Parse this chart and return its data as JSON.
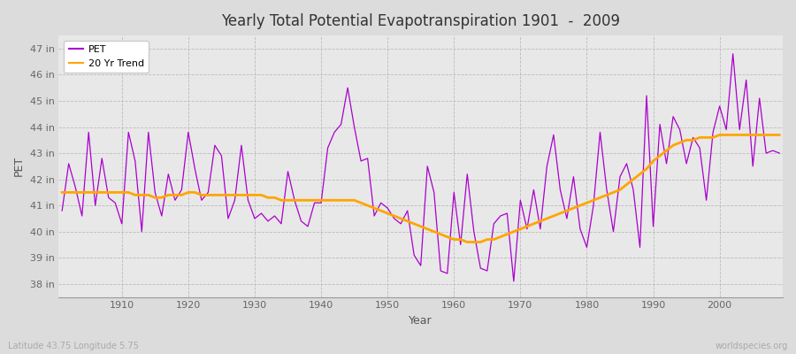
{
  "title": "Yearly Total Potential Evapotranspiration 1901  -  2009",
  "xlabel": "Year",
  "ylabel": "PET",
  "subtitle_lat": "Latitude 43.75 Longitude 5.75",
  "watermark": "worldspecies.org",
  "pet_color": "#AA00CC",
  "trend_color": "#FFA500",
  "bg_color": "#DCDCDC",
  "plot_bg_color": "#E8E8E8",
  "ylim": [
    37.5,
    47.5
  ],
  "yticks": [
    38,
    39,
    40,
    41,
    42,
    43,
    44,
    45,
    46,
    47
  ],
  "xticks": [
    1910,
    1920,
    1930,
    1940,
    1950,
    1960,
    1970,
    1980,
    1990,
    2000
  ],
  "years": [
    1901,
    1902,
    1903,
    1904,
    1905,
    1906,
    1907,
    1908,
    1909,
    1910,
    1911,
    1912,
    1913,
    1914,
    1915,
    1916,
    1917,
    1918,
    1919,
    1920,
    1921,
    1922,
    1923,
    1924,
    1925,
    1926,
    1927,
    1928,
    1929,
    1930,
    1931,
    1932,
    1933,
    1934,
    1935,
    1936,
    1937,
    1938,
    1939,
    1940,
    1941,
    1942,
    1943,
    1944,
    1945,
    1946,
    1947,
    1948,
    1949,
    1950,
    1951,
    1952,
    1953,
    1954,
    1955,
    1956,
    1957,
    1958,
    1959,
    1960,
    1961,
    1962,
    1963,
    1964,
    1965,
    1966,
    1967,
    1968,
    1969,
    1970,
    1971,
    1972,
    1973,
    1974,
    1975,
    1976,
    1977,
    1978,
    1979,
    1980,
    1981,
    1982,
    1983,
    1984,
    1985,
    1986,
    1987,
    1988,
    1989,
    1990,
    1991,
    1992,
    1993,
    1994,
    1995,
    1996,
    1997,
    1998,
    1999,
    2000,
    2001,
    2002,
    2003,
    2004,
    2005,
    2006,
    2007,
    2008,
    2009
  ],
  "pet": [
    40.8,
    42.6,
    41.7,
    40.6,
    43.8,
    41.0,
    42.8,
    41.3,
    41.1,
    40.3,
    43.8,
    42.7,
    40.0,
    43.8,
    41.5,
    40.6,
    42.2,
    41.2,
    41.6,
    43.8,
    42.4,
    41.2,
    41.5,
    43.3,
    42.9,
    40.5,
    41.2,
    43.3,
    41.2,
    40.5,
    40.7,
    40.4,
    40.6,
    40.3,
    42.3,
    41.2,
    40.4,
    40.2,
    41.1,
    41.1,
    43.2,
    43.8,
    44.1,
    45.5,
    44.0,
    42.7,
    42.8,
    40.6,
    41.1,
    40.9,
    40.5,
    40.3,
    40.8,
    39.1,
    38.7,
    42.5,
    41.5,
    38.5,
    38.4,
    41.5,
    39.5,
    42.2,
    40.0,
    38.6,
    38.5,
    40.3,
    40.6,
    40.7,
    38.1,
    41.2,
    40.1,
    41.6,
    40.1,
    42.5,
    43.7,
    41.6,
    40.5,
    42.1,
    40.1,
    39.4,
    41.0,
    43.8,
    41.6,
    40.0,
    42.1,
    42.6,
    41.6,
    39.4,
    45.2,
    40.2,
    44.1,
    42.6,
    44.4,
    43.9,
    42.6,
    43.6,
    43.2,
    41.2,
    43.8,
    44.8,
    43.9,
    46.8,
    43.9,
    45.8,
    42.5,
    45.1,
    43.0,
    43.1,
    43.0
  ],
  "trend": [
    41.5,
    41.5,
    41.5,
    41.5,
    41.5,
    41.5,
    41.5,
    41.5,
    41.5,
    41.5,
    41.5,
    41.4,
    41.4,
    41.4,
    41.3,
    41.3,
    41.4,
    41.4,
    41.4,
    41.5,
    41.5,
    41.4,
    41.4,
    41.4,
    41.4,
    41.4,
    41.4,
    41.4,
    41.4,
    41.4,
    41.4,
    41.3,
    41.3,
    41.2,
    41.2,
    41.2,
    41.2,
    41.2,
    41.2,
    41.2,
    41.2,
    41.2,
    41.2,
    41.2,
    41.2,
    41.1,
    41.0,
    40.9,
    40.8,
    40.7,
    40.6,
    40.5,
    40.4,
    40.3,
    40.2,
    40.1,
    40.0,
    39.9,
    39.8,
    39.7,
    39.7,
    39.6,
    39.6,
    39.6,
    39.7,
    39.7,
    39.8,
    39.9,
    40.0,
    40.1,
    40.2,
    40.3,
    40.4,
    40.5,
    40.6,
    40.7,
    40.8,
    40.9,
    41.0,
    41.1,
    41.2,
    41.3,
    41.4,
    41.5,
    41.6,
    41.8,
    42.0,
    42.2,
    42.4,
    42.7,
    42.9,
    43.1,
    43.3,
    43.4,
    43.5,
    43.5,
    43.6,
    43.6,
    43.6,
    43.7,
    43.7,
    43.7,
    43.7,
    43.7,
    43.7,
    43.7,
    43.7,
    43.7,
    43.7
  ]
}
